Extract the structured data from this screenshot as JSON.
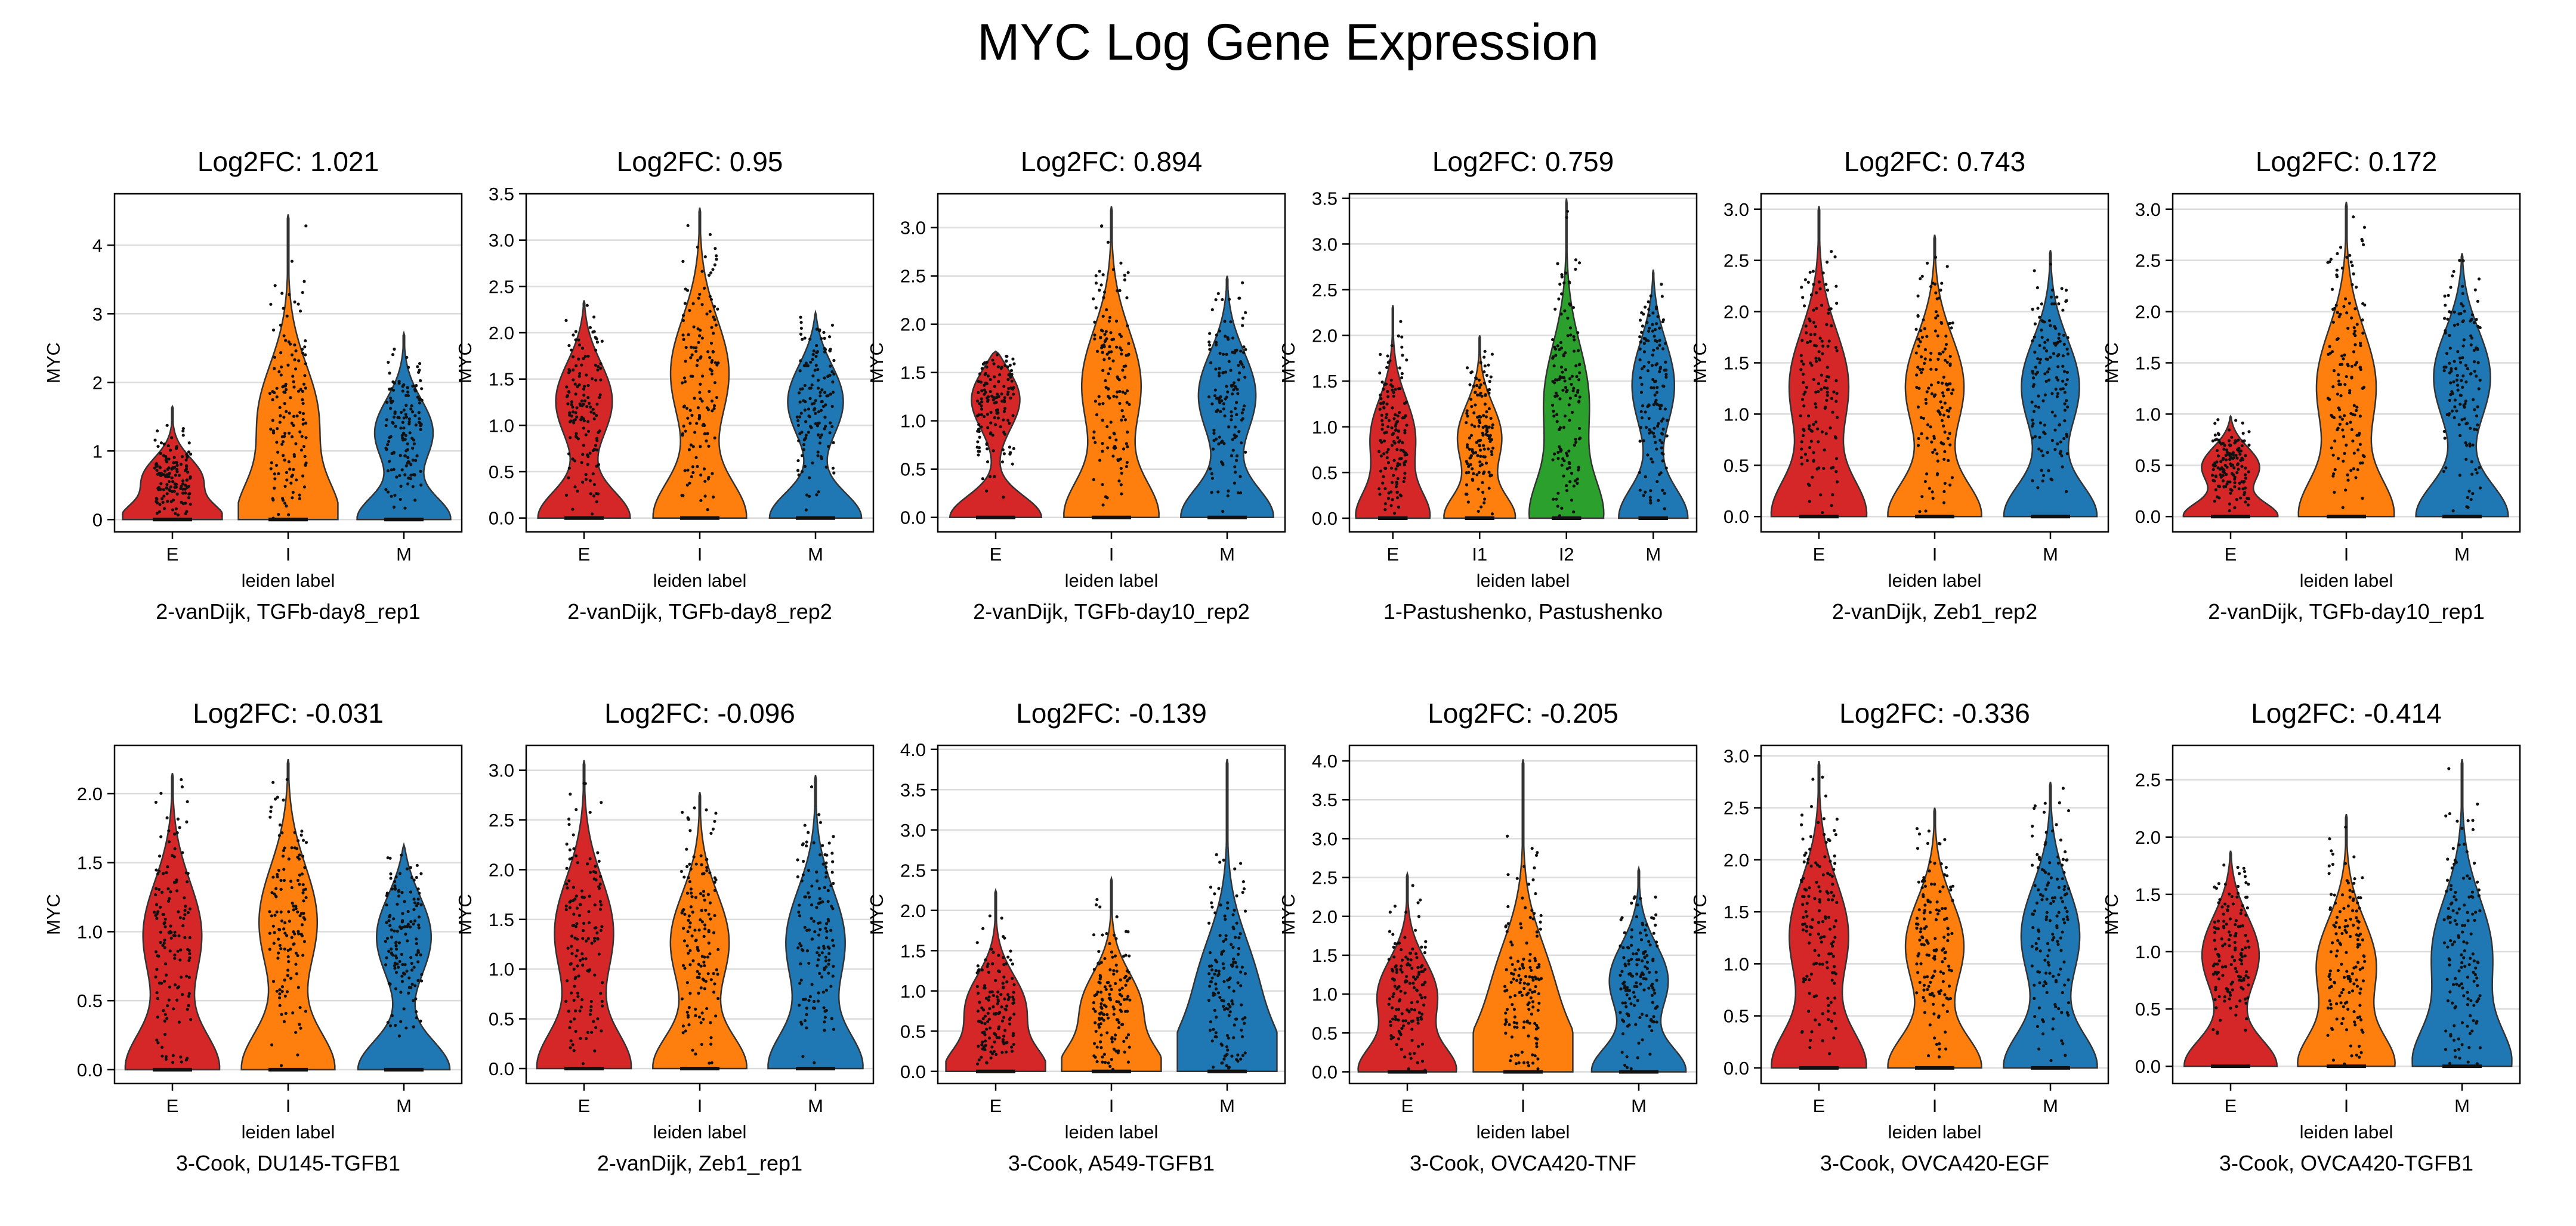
{
  "figure": {
    "title": "MYC Log Gene Expression",
    "xlabel": "leiden label",
    "ylabel": "MYC"
  },
  "colors": {
    "E": "#d62728",
    "I": "#ff7f0e",
    "I1": "#ff7f0e",
    "I2": "#2ca02c",
    "M": "#1f77b4",
    "grid": "#dcdcdc",
    "outline": "#333333"
  },
  "chart_data": [
    {
      "type": "violin",
      "title": "Log2FC: 1.021",
      "subtitle": "2-vanDijk, TGFb-day8_rep1",
      "ylim": [
        -0.18,
        4.75
      ],
      "yticks": [
        0,
        1,
        2,
        3,
        4
      ],
      "categories": [
        "E",
        "I",
        "M"
      ],
      "max": [
        1.65,
        4.45,
        2.72
      ],
      "mode": [
        0.6,
        1.5,
        1.3
      ]
    },
    {
      "type": "violin",
      "title": "Log2FC: 0.95",
      "subtitle": "2-vanDijk, TGFb-day8_rep2",
      "ylim": [
        -0.15,
        3.5
      ],
      "yticks": [
        0,
        0.5,
        1.0,
        1.5,
        2.0,
        2.5,
        3.0,
        3.5
      ],
      "categories": [
        "E",
        "I",
        "M"
      ],
      "max": [
        2.35,
        3.35,
        2.22
      ],
      "mode": [
        1.3,
        1.6,
        1.3
      ]
    },
    {
      "type": "violin",
      "title": "Log2FC: 0.894",
      "subtitle": "2-vanDijk, TGFb-day10_rep2",
      "ylim": [
        -0.15,
        3.35
      ],
      "yticks": [
        0,
        0.5,
        1.0,
        1.5,
        2.0,
        2.5,
        3.0
      ],
      "categories": [
        "E",
        "I",
        "M"
      ],
      "max": [
        1.72,
        3.22,
        2.5
      ],
      "mode": [
        1.3,
        1.4,
        1.3
      ]
    },
    {
      "type": "violin",
      "title": "Log2FC: 0.759",
      "subtitle": "1-Pastushenko, Pastushenko",
      "ylim": [
        -0.15,
        3.55
      ],
      "yticks": [
        0,
        0.5,
        1.0,
        1.5,
        2.0,
        2.5,
        3.0,
        3.5
      ],
      "categories": [
        "E",
        "I1",
        "I2",
        "M"
      ],
      "max": [
        2.33,
        2.0,
        3.5,
        2.72
      ],
      "mode": [
        0.9,
        0.9,
        1.3,
        1.5
      ]
    },
    {
      "type": "violin",
      "title": "Log2FC: 0.743",
      "subtitle": "2-vanDijk, Zeb1_rep2",
      "ylim": [
        -0.15,
        3.15
      ],
      "yticks": [
        0,
        0.5,
        1.0,
        1.5,
        2.0,
        2.5,
        3.0
      ],
      "categories": [
        "E",
        "I",
        "M"
      ],
      "max": [
        3.03,
        2.75,
        2.6
      ],
      "mode": [
        1.3,
        1.3,
        1.3
      ]
    },
    {
      "type": "violin",
      "title": "Log2FC: 0.172",
      "subtitle": "2-vanDijk, TGFb-day10_rep1",
      "ylim": [
        -0.15,
        3.15
      ],
      "yticks": [
        0,
        0.5,
        1.0,
        1.5,
        2.0,
        2.5,
        3.0
      ],
      "categories": [
        "E",
        "I",
        "M"
      ],
      "max": [
        0.98,
        3.07,
        2.57
      ],
      "mode": [
        0.5,
        1.3,
        1.4
      ]
    },
    {
      "type": "violin",
      "title": "Log2FC: -0.031",
      "subtitle": "3-Cook, DU145-TGFB1",
      "ylim": [
        -0.1,
        2.35
      ],
      "yticks": [
        0,
        0.5,
        1.0,
        1.5,
        2.0
      ],
      "categories": [
        "E",
        "I",
        "M"
      ],
      "max": [
        2.15,
        2.25,
        1.63
      ],
      "mode": [
        1.0,
        1.1,
        1.0
      ]
    },
    {
      "type": "violin",
      "title": "Log2FC: -0.096",
      "subtitle": "2-vanDijk, Zeb1_rep1",
      "ylim": [
        -0.15,
        3.25
      ],
      "yticks": [
        0,
        0.5,
        1.0,
        1.5,
        2.0,
        2.5,
        3.0
      ],
      "categories": [
        "E",
        "I",
        "M"
      ],
      "max": [
        3.1,
        2.78,
        2.95
      ],
      "mode": [
        1.4,
        1.3,
        1.3
      ]
    },
    {
      "type": "violin",
      "title": "Log2FC: -0.139",
      "subtitle": "3-Cook, A549-TGFB1",
      "ylim": [
        -0.15,
        4.05
      ],
      "yticks": [
        0,
        0.5,
        1.0,
        1.5,
        2.0,
        2.5,
        3.0,
        3.5,
        4.0
      ],
      "categories": [
        "E",
        "I",
        "M"
      ],
      "max": [
        2.25,
        2.4,
        3.88
      ],
      "mode": [
        0.8,
        0.8,
        1.0
      ]
    },
    {
      "type": "violin",
      "title": "Log2FC: -0.205",
      "subtitle": "3-Cook, OVCA420-TNF",
      "ylim": [
        -0.15,
        4.2
      ],
      "yticks": [
        0,
        0.5,
        1.0,
        1.5,
        2.0,
        2.5,
        3.0,
        3.5,
        4.0
      ],
      "categories": [
        "E",
        "I",
        "M"
      ],
      "max": [
        2.55,
        4.02,
        2.62
      ],
      "mode": [
        1.0,
        1.0,
        1.2
      ]
    },
    {
      "type": "violin",
      "title": "Log2FC: -0.336",
      "subtitle": "3-Cook, OVCA420-EGF",
      "ylim": [
        -0.15,
        3.1
      ],
      "yticks": [
        0,
        0.5,
        1.0,
        1.5,
        2.0,
        2.5,
        3.0
      ],
      "categories": [
        "E",
        "I",
        "M"
      ],
      "max": [
        2.95,
        2.5,
        2.75
      ],
      "mode": [
        1.3,
        1.2,
        1.3
      ]
    },
    {
      "type": "violin",
      "title": "Log2FC: -0.414",
      "subtitle": "3-Cook, OVCA420-TGFB1",
      "ylim": [
        -0.15,
        2.8
      ],
      "yticks": [
        0,
        0.5,
        1.0,
        1.5,
        2.0,
        2.5
      ],
      "categories": [
        "E",
        "I",
        "M"
      ],
      "max": [
        1.88,
        2.2,
        2.68
      ],
      "mode": [
        1.0,
        0.9,
        1.0
      ]
    }
  ]
}
